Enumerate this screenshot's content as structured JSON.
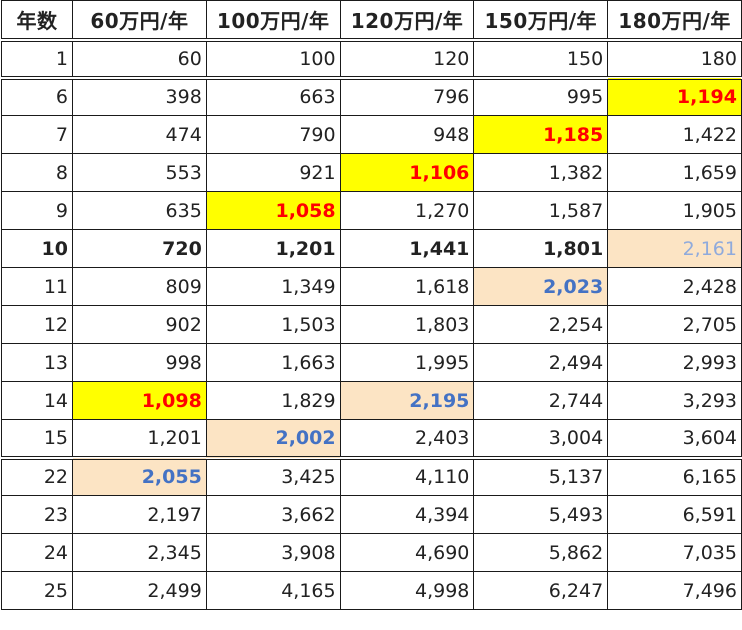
{
  "colors": {
    "yellow_highlight": "#ffff00",
    "red_text": "#ff0000",
    "peach_highlight": "#fce4c4",
    "blue_text": "#4472c4",
    "light_blue_text": "#8faadc"
  },
  "table": {
    "headers": [
      "年数",
      "60万円/年",
      "100万円/年",
      "120万円/年",
      "150万円/年",
      "180万円/年"
    ],
    "rows": [
      {
        "year": "1",
        "cells": [
          "60",
          "100",
          "120",
          "150",
          "180"
        ],
        "style": "",
        "hl": [
          "",
          "",
          "",
          "",
          ""
        ]
      },
      {
        "year": "6",
        "cells": [
          "398",
          "663",
          "796",
          "995",
          "1,194"
        ],
        "style": "sep-before",
        "hl": [
          "",
          "",
          "",
          "",
          "yellow"
        ]
      },
      {
        "year": "7",
        "cells": [
          "474",
          "790",
          "948",
          "1,185",
          "1,422"
        ],
        "style": "",
        "hl": [
          "",
          "",
          "",
          "yellow",
          ""
        ]
      },
      {
        "year": "8",
        "cells": [
          "553",
          "921",
          "1,106",
          "1,382",
          "1,659"
        ],
        "style": "",
        "hl": [
          "",
          "",
          "yellow",
          "",
          ""
        ]
      },
      {
        "year": "9",
        "cells": [
          "635",
          "1,058",
          "1,270",
          "1,587",
          "1,905"
        ],
        "style": "",
        "hl": [
          "",
          "yellow",
          "",
          "",
          ""
        ]
      },
      {
        "year": "10",
        "cells": [
          "720",
          "1,201",
          "1,441",
          "1,801",
          "2,161"
        ],
        "style": "bold",
        "hl": [
          "",
          "",
          "",
          "",
          "peach-light"
        ]
      },
      {
        "year": "11",
        "cells": [
          "809",
          "1,349",
          "1,618",
          "2,023",
          "2,428"
        ],
        "style": "",
        "hl": [
          "",
          "",
          "",
          "peach",
          ""
        ]
      },
      {
        "year": "12",
        "cells": [
          "902",
          "1,503",
          "1,803",
          "2,254",
          "2,705"
        ],
        "style": "",
        "hl": [
          "",
          "",
          "",
          "",
          ""
        ]
      },
      {
        "year": "13",
        "cells": [
          "998",
          "1,663",
          "1,995",
          "2,494",
          "2,993"
        ],
        "style": "",
        "hl": [
          "",
          "",
          "",
          "",
          ""
        ]
      },
      {
        "year": "14",
        "cells": [
          "1,098",
          "1,829",
          "2,195",
          "2,744",
          "3,293"
        ],
        "style": "",
        "hl": [
          "yellow",
          "",
          "peach",
          "",
          ""
        ]
      },
      {
        "year": "15",
        "cells": [
          "1,201",
          "2,002",
          "2,403",
          "3,004",
          "3,604"
        ],
        "style": "",
        "hl": [
          "",
          "peach",
          "",
          "",
          ""
        ]
      },
      {
        "year": "22",
        "cells": [
          "2,055",
          "3,425",
          "4,110",
          "5,137",
          "6,165"
        ],
        "style": "sep-before",
        "hl": [
          "peach",
          "",
          "",
          "",
          ""
        ]
      },
      {
        "year": "23",
        "cells": [
          "2,197",
          "3,662",
          "4,394",
          "5,493",
          "6,591"
        ],
        "style": "",
        "hl": [
          "",
          "",
          "",
          "",
          ""
        ]
      },
      {
        "year": "24",
        "cells": [
          "2,345",
          "3,908",
          "4,690",
          "5,862",
          "7,035"
        ],
        "style": "",
        "hl": [
          "",
          "",
          "",
          "",
          ""
        ]
      },
      {
        "year": "25",
        "cells": [
          "2,499",
          "4,165",
          "4,998",
          "6,247",
          "7,496"
        ],
        "style": "",
        "hl": [
          "",
          "",
          "",
          "",
          ""
        ]
      }
    ]
  }
}
